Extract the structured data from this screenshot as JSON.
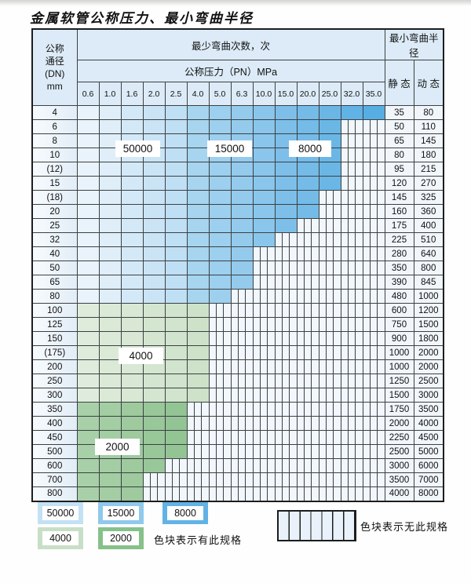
{
  "title": "金属软管公称压力、最小弯曲半径",
  "table": {
    "dn_header_lines": [
      "公称",
      "通径",
      "(DN)",
      "mm"
    ],
    "bend_cycles_header": "最少弯曲次数，次",
    "pressure_header": "公称压力（PN）MPa",
    "min_bend_radius_header": "最小弯曲半径",
    "static_label": "静 态",
    "dynamic_label": "动 态",
    "pressure_columns": [
      "0.6",
      "1.0",
      "1.6",
      "2.0",
      "2.5",
      "4.0",
      "5.0",
      "6.3",
      "10.0",
      "15.0",
      "20.0",
      "25.0",
      "32.0",
      "35.0"
    ],
    "rows": [
      {
        "dn": "4",
        "group": "b",
        "colored_through": 14,
        "static": "35",
        "dynamic": "80"
      },
      {
        "dn": "6",
        "group": "b",
        "colored_through": 12,
        "static": "50",
        "dynamic": "110"
      },
      {
        "dn": "8",
        "group": "b",
        "colored_through": 12,
        "static": "65",
        "dynamic": "145"
      },
      {
        "dn": "10",
        "group": "b",
        "colored_through": 12,
        "static": "80",
        "dynamic": "180"
      },
      {
        "dn": "(12)",
        "group": "b",
        "colored_through": 12,
        "static": "95",
        "dynamic": "215"
      },
      {
        "dn": "15",
        "group": "b",
        "colored_through": 12,
        "static": "120",
        "dynamic": "270"
      },
      {
        "dn": "(18)",
        "group": "b",
        "colored_through": 11,
        "static": "145",
        "dynamic": "325"
      },
      {
        "dn": "20",
        "group": "b",
        "colored_through": 11,
        "static": "160",
        "dynamic": "360"
      },
      {
        "dn": "25",
        "group": "b",
        "colored_through": 10,
        "static": "175",
        "dynamic": "400"
      },
      {
        "dn": "32",
        "group": "b",
        "colored_through": 9,
        "static": "225",
        "dynamic": "510"
      },
      {
        "dn": "40",
        "group": "b",
        "colored_through": 8,
        "static": "280",
        "dynamic": "640"
      },
      {
        "dn": "50",
        "group": "b",
        "colored_through": 8,
        "static": "350",
        "dynamic": "800"
      },
      {
        "dn": "65",
        "group": "b",
        "colored_through": 8,
        "static": "390",
        "dynamic": "845"
      },
      {
        "dn": "80",
        "group": "b",
        "colored_through": 7,
        "static": "480",
        "dynamic": "1000"
      },
      {
        "dn": "100",
        "group": "g1",
        "colored_through": 6,
        "static": "600",
        "dynamic": "1200"
      },
      {
        "dn": "125",
        "group": "g1",
        "colored_through": 6,
        "static": "750",
        "dynamic": "1500"
      },
      {
        "dn": "150",
        "group": "g1",
        "colored_through": 6,
        "static": "900",
        "dynamic": "1800"
      },
      {
        "dn": "(175)",
        "group": "g1",
        "colored_through": 6,
        "static": "1000",
        "dynamic": "2000"
      },
      {
        "dn": "200",
        "group": "g1",
        "colored_through": 6,
        "static": "1000",
        "dynamic": "2000"
      },
      {
        "dn": "250",
        "group": "g1",
        "colored_through": 6,
        "static": "1250",
        "dynamic": "2500"
      },
      {
        "dn": "300",
        "group": "g1",
        "colored_through": 6,
        "static": "1500",
        "dynamic": "3000"
      },
      {
        "dn": "350",
        "group": "g2",
        "colored_through": 5,
        "static": "1750",
        "dynamic": "3500"
      },
      {
        "dn": "400",
        "group": "g2",
        "colored_through": 5,
        "static": "2000",
        "dynamic": "4000"
      },
      {
        "dn": "450",
        "group": "g2",
        "colored_through": 5,
        "static": "2250",
        "dynamic": "4500"
      },
      {
        "dn": "500",
        "group": "g2",
        "colored_through": 5,
        "static": "2500",
        "dynamic": "5000"
      },
      {
        "dn": "600",
        "group": "g2",
        "colored_through": 4,
        "static": "3000",
        "dynamic": "6000"
      },
      {
        "dn": "700",
        "group": "g2",
        "colored_through": 3,
        "static": "3500",
        "dynamic": "7000"
      },
      {
        "dn": "800",
        "group": "g2",
        "colored_through": 3,
        "static": "4000",
        "dynamic": "8000"
      }
    ]
  },
  "region_labels": [
    "50000",
    "15000",
    "8000",
    "4000",
    "2000"
  ],
  "legend": {
    "swatches": [
      {
        "label": "50000",
        "color": "#c3e1f4"
      },
      {
        "label": "15000",
        "color": "#8fc9ec"
      },
      {
        "label": "8000",
        "color": "#62b3e5"
      },
      {
        "label": "4000",
        "color": "#c7dfc6"
      },
      {
        "label": "2000",
        "color": "#85c189"
      }
    ],
    "has_spec_text": "色块表示有此规格",
    "no_spec_text": "色块表示无此规格"
  },
  "colors": {
    "blue_light": [
      "#e9f3fb",
      "#bfdff4"
    ],
    "blue_mid": [
      "#a7d4ef",
      "#8ac6ec"
    ],
    "blue_dark": [
      "#7dbfe9",
      "#57aee3"
    ],
    "green_light": [
      "#dfecdb",
      "#cde2c9"
    ],
    "green_dark": [
      "#a8d0a8",
      "#93c494"
    ]
  }
}
